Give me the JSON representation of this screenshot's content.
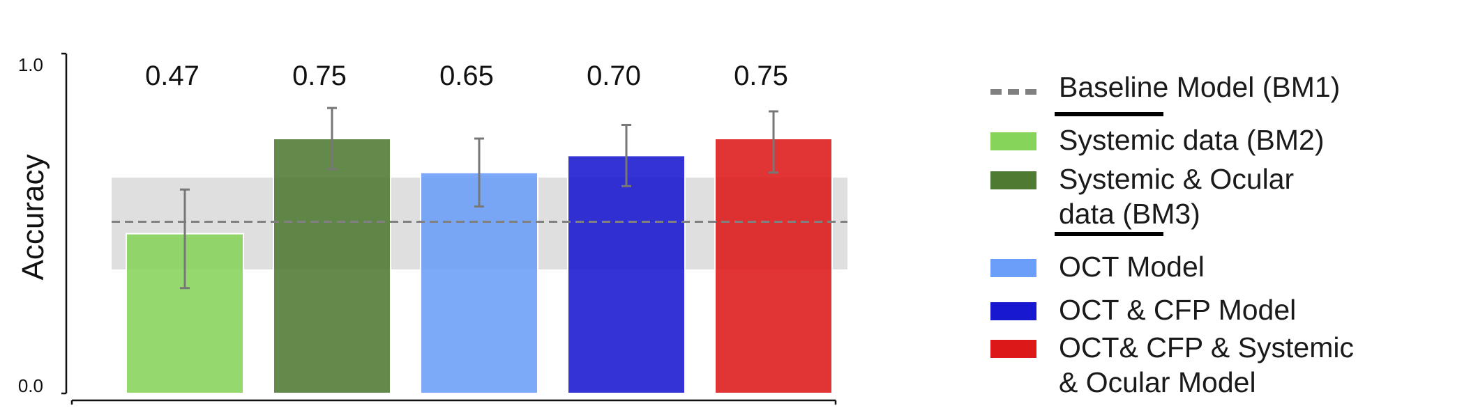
{
  "chart_data": {
    "type": "bar",
    "categories": [
      "Systemic data (BM2)",
      "Systemic & Ocular data (BM3)",
      "OCT Model",
      "OCT & CFP Model",
      "OCT& CFP & Systemic & Ocular Model"
    ],
    "values": [
      0.47,
      0.75,
      0.65,
      0.7,
      0.75
    ],
    "value_labels": [
      "0.47",
      "0.75",
      "0.65",
      "0.70",
      "0.75"
    ],
    "error_low": [
      0.31,
      0.66,
      0.55,
      0.61,
      0.65
    ],
    "error_high": [
      0.6,
      0.84,
      0.75,
      0.79,
      0.83
    ],
    "colors": [
      "#86d45a",
      "#4f7a32",
      "#6a9ef8",
      "#1818d0",
      "#dd1818"
    ],
    "baseline": {
      "label": "Baseline Model (BM1)",
      "value": 0.505,
      "band_low": 0.365,
      "band_high": 0.635,
      "color": "#808080"
    },
    "ylabel": "Accuracy",
    "xlabel": "",
    "ylim": [
      0.0,
      1.0
    ],
    "yticks": [
      "0.0",
      "1.0"
    ],
    "grid": false,
    "legend": {
      "position": "right",
      "items": [
        {
          "label": "Baseline Model (BM1)",
          "style": "dashed",
          "color": "#808080"
        },
        {
          "label": "Systemic data (BM2)",
          "style": "box",
          "color": "#86d45a"
        },
        {
          "label": "Systemic & Ocular\ndata (BM3)",
          "style": "box",
          "color": "#4f7a32"
        },
        {
          "label": "OCT Model",
          "style": "box",
          "color": "#6a9ef8"
        },
        {
          "label": "OCT & CFP Model",
          "style": "box",
          "color": "#1818d0"
        },
        {
          "label": "OCT& CFP & Systemic\n& Ocular Model",
          "style": "box",
          "color": "#dd1818"
        }
      ]
    }
  }
}
